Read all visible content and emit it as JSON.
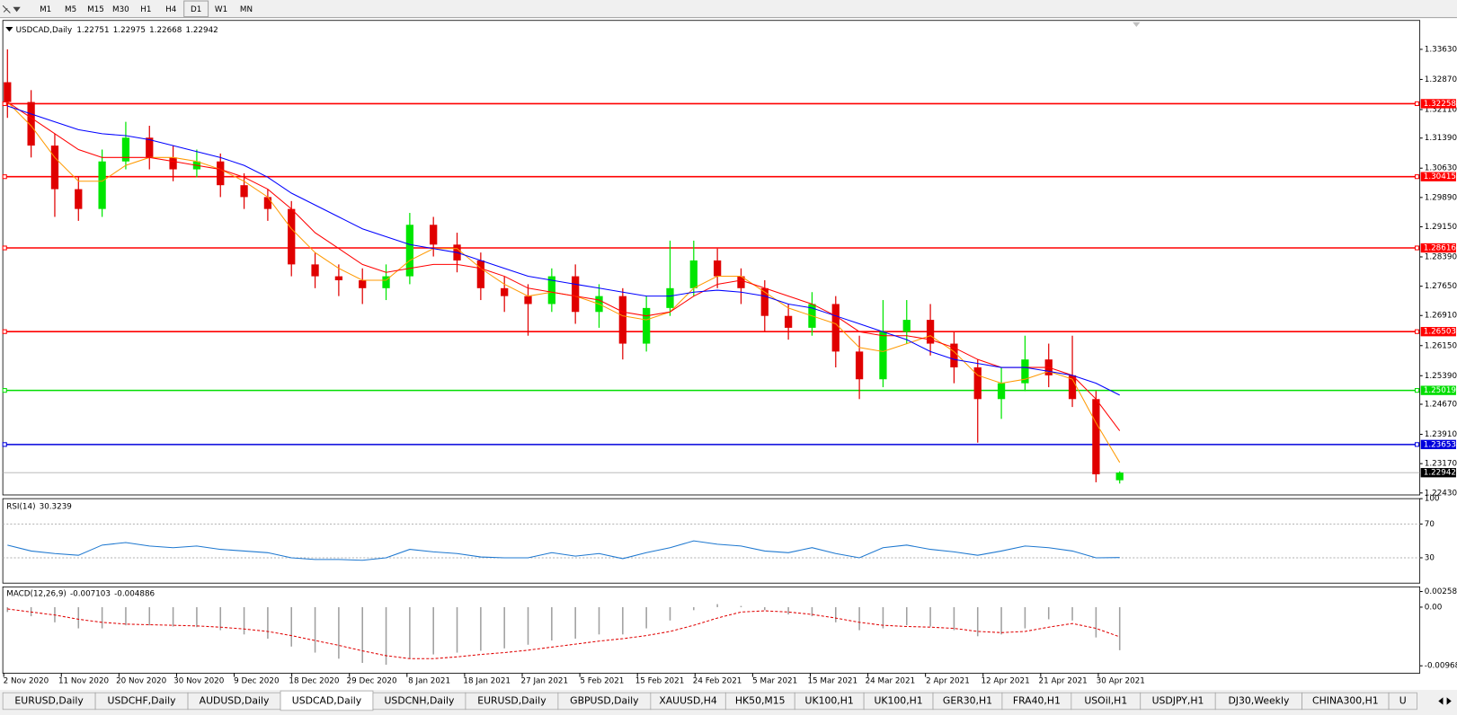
{
  "toolbar": {
    "timeframes": [
      "M1",
      "M5",
      "M15",
      "M30",
      "H1",
      "H4",
      "D1",
      "W1",
      "MN"
    ]
  },
  "chart_data": [
    {
      "type": "candlestick",
      "title": "USDCAD,Daily",
      "open": [
        1.328,
        1.323,
        1.312,
        1.301,
        1.296,
        1.308,
        1.314,
        1.309,
        1.306,
        1.308,
        1.302,
        1.299,
        1.296,
        1.282,
        1.279,
        1.278,
        1.276,
        1.279,
        1.292,
        1.287,
        1.283,
        1.276,
        1.274,
        1.272,
        1.279,
        1.27,
        1.274,
        1.262,
        1.271,
        1.276,
        1.283,
        1.279,
        1.276,
        1.269,
        1.266,
        1.272,
        1.26,
        1.253,
        1.265,
        1.268,
        1.262,
        1.256,
        1.248,
        1.252,
        1.258,
        1.254,
        1.248,
        1.22751
      ],
      "high": [
        1.3363,
        1.326,
        1.315,
        1.304,
        1.311,
        1.318,
        1.317,
        1.312,
        1.311,
        1.31,
        1.305,
        1.301,
        1.298,
        1.285,
        1.282,
        1.281,
        1.282,
        1.295,
        1.294,
        1.29,
        1.285,
        1.279,
        1.277,
        1.281,
        1.282,
        1.277,
        1.276,
        1.274,
        1.288,
        1.288,
        1.286,
        1.281,
        1.278,
        1.272,
        1.275,
        1.274,
        1.264,
        1.273,
        1.273,
        1.272,
        1.265,
        1.258,
        1.256,
        1.264,
        1.262,
        1.264,
        1.25,
        1.22975
      ],
      "low": [
        1.319,
        1.309,
        1.294,
        1.293,
        1.294,
        1.306,
        1.306,
        1.303,
        1.304,
        1.299,
        1.296,
        1.293,
        1.279,
        1.276,
        1.274,
        1.272,
        1.273,
        1.277,
        1.284,
        1.28,
        1.273,
        1.27,
        1.264,
        1.27,
        1.267,
        1.266,
        1.258,
        1.26,
        1.269,
        1.274,
        1.276,
        1.272,
        1.265,
        1.263,
        1.264,
        1.256,
        1.248,
        1.251,
        1.262,
        1.259,
        1.252,
        1.237,
        1.243,
        1.25,
        1.251,
        1.246,
        1.227,
        1.22668
      ],
      "close": [
        1.323,
        1.312,
        1.301,
        1.296,
        1.308,
        1.314,
        1.309,
        1.306,
        1.308,
        1.302,
        1.299,
        1.296,
        1.282,
        1.279,
        1.278,
        1.276,
        1.279,
        1.292,
        1.287,
        1.283,
        1.276,
        1.274,
        1.272,
        1.279,
        1.27,
        1.274,
        1.262,
        1.271,
        1.276,
        1.283,
        1.279,
        1.276,
        1.269,
        1.266,
        1.272,
        1.26,
        1.253,
        1.265,
        1.268,
        1.262,
        1.256,
        1.248,
        1.252,
        1.258,
        1.254,
        1.248,
        1.229,
        1.22942
      ],
      "bull_color": "#00e600",
      "bear_color": "#e00000",
      "moving_averages": [
        {
          "color": "#ff9900",
          "values": [
            1.323,
            1.317,
            1.309,
            1.303,
            1.303,
            1.307,
            1.309,
            1.309,
            1.308,
            1.306,
            1.303,
            1.299,
            1.291,
            1.285,
            1.281,
            1.278,
            1.278,
            1.283,
            1.286,
            1.286,
            1.281,
            1.277,
            1.274,
            1.275,
            1.274,
            1.272,
            1.269,
            1.268,
            1.27,
            1.276,
            1.279,
            1.279,
            1.275,
            1.271,
            1.269,
            1.267,
            1.261,
            1.26,
            1.262,
            1.264,
            1.26,
            1.254,
            1.252,
            1.253,
            1.255,
            1.253,
            1.242,
            1.232
          ]
        },
        {
          "color": "#ff0000",
          "values": [
            1.323,
            1.319,
            1.315,
            1.311,
            1.309,
            1.309,
            1.309,
            1.308,
            1.307,
            1.306,
            1.304,
            1.301,
            1.296,
            1.29,
            1.286,
            1.282,
            1.28,
            1.281,
            1.282,
            1.282,
            1.281,
            1.279,
            1.276,
            1.275,
            1.274,
            1.273,
            1.27,
            1.269,
            1.27,
            1.274,
            1.277,
            1.278,
            1.276,
            1.274,
            1.272,
            1.269,
            1.265,
            1.264,
            1.264,
            1.263,
            1.261,
            1.258,
            1.256,
            1.256,
            1.256,
            1.254,
            1.248,
            1.24
          ]
        },
        {
          "color": "#0000ff",
          "values": [
            1.322,
            1.32,
            1.318,
            1.316,
            1.315,
            1.3145,
            1.3135,
            1.312,
            1.3105,
            1.309,
            1.307,
            1.304,
            1.3,
            1.297,
            1.294,
            1.291,
            1.289,
            1.287,
            1.286,
            1.285,
            1.283,
            1.281,
            1.279,
            1.278,
            1.277,
            1.276,
            1.275,
            1.274,
            1.274,
            1.275,
            1.2755,
            1.275,
            1.274,
            1.272,
            1.271,
            1.269,
            1.267,
            1.265,
            1.263,
            1.26,
            1.258,
            1.257,
            1.256,
            1.256,
            1.255,
            1.254,
            1.252,
            1.249
          ]
        }
      ],
      "levels": [
        {
          "value": 1.32258,
          "color": "#ff0000"
        },
        {
          "value": 1.30415,
          "color": "#ff0000"
        },
        {
          "value": 1.28616,
          "color": "#ff0000"
        },
        {
          "value": 1.26503,
          "color": "#ff0000"
        },
        {
          "value": 1.25019,
          "color": "#00dd00"
        },
        {
          "value": 1.23653,
          "color": "#0000dd"
        }
      ],
      "ylim": [
        1.2238,
        1.3436
      ],
      "yticks": [
        {
          "value": 1.3363,
          "label": "1.33630"
        },
        {
          "value": 1.3287,
          "label": "1.32870"
        },
        {
          "value": 1.3211,
          "label": "1.32110"
        },
        {
          "value": 1.3139,
          "label": "1.31390"
        },
        {
          "value": 1.3063,
          "label": "1.30630"
        },
        {
          "value": 1.2989,
          "label": "1.29890"
        },
        {
          "value": 1.2915,
          "label": "1.29150"
        },
        {
          "value": 1.2839,
          "label": "1.28390"
        },
        {
          "value": 1.2765,
          "label": "1.27650"
        },
        {
          "value": 1.2691,
          "label": "1.26910"
        },
        {
          "value": 1.2615,
          "label": "1.26150"
        },
        {
          "value": 1.2539,
          "label": "1.25390"
        },
        {
          "value": 1.2467,
          "label": "1.24670"
        },
        {
          "value": 1.2391,
          "label": "1.23910"
        },
        {
          "value": 1.2317,
          "label": "1.23170"
        },
        {
          "value": 1.2243,
          "label": "1.22430"
        }
      ],
      "date_labels": [
        "2 Nov 2020",
        "11 Nov 2020",
        "20 Nov 2020",
        "30 Nov 2020",
        "9 Dec 2020",
        "18 Dec 2020",
        "29 Dec 2020",
        "8 Jan 2021",
        "18 Jan 2021",
        "27 Jan 2021",
        "5 Feb 2021",
        "15 Feb 2021",
        "24 Feb 2021",
        "5 Mar 2021",
        "15 Mar 2021",
        "24 Mar 2021",
        "2 Apr 2021",
        "12 Apr 2021",
        "21 Apr 2021",
        "30 Apr 2021"
      ]
    },
    {
      "type": "line",
      "title": "RSI(14)",
      "color": "#1e78d0",
      "values": [
        45,
        38,
        35,
        33,
        45,
        48,
        44,
        42,
        44,
        40,
        38,
        36,
        30,
        28,
        28,
        27,
        30,
        40,
        37,
        35,
        31,
        30,
        30,
        36,
        32,
        35,
        29,
        36,
        42,
        50,
        46,
        44,
        38,
        36,
        42,
        35,
        30,
        42,
        45,
        40,
        37,
        33,
        38,
        44,
        42,
        38,
        30,
        30.3239
      ],
      "ylim": [
        0,
        100
      ],
      "yticks": [
        100,
        70,
        30
      ],
      "levels": [
        70,
        30
      ]
    },
    {
      "type": "macd",
      "title": "MACD(12,26,9)",
      "hist_color": "#a0a0a0",
      "signal_color": "#e00000",
      "histogram": [
        -0.0008,
        -0.0015,
        -0.0025,
        -0.0035,
        -0.0035,
        -0.003,
        -0.003,
        -0.0032,
        -0.0033,
        -0.0038,
        -0.0045,
        -0.0052,
        -0.0065,
        -0.0075,
        -0.0085,
        -0.0092,
        -0.0095,
        -0.0085,
        -0.0078,
        -0.0075,
        -0.0072,
        -0.0068,
        -0.0062,
        -0.0055,
        -0.0052,
        -0.0045,
        -0.0045,
        -0.0035,
        -0.0022,
        -0.0005,
        0.0005,
        0.0002,
        -0.0005,
        -0.0012,
        -0.0015,
        -0.0025,
        -0.0038,
        -0.0035,
        -0.003,
        -0.0032,
        -0.0038,
        -0.0048,
        -0.0045,
        -0.0035,
        -0.002,
        -0.0022,
        -0.005,
        -0.007103
      ],
      "signal": [
        -0.0003,
        -0.0008,
        -0.0013,
        -0.002,
        -0.0025,
        -0.0028,
        -0.0029,
        -0.003,
        -0.0031,
        -0.0033,
        -0.0036,
        -0.004,
        -0.0047,
        -0.0055,
        -0.0063,
        -0.0072,
        -0.008,
        -0.0085,
        -0.0085,
        -0.0082,
        -0.0078,
        -0.0075,
        -0.0071,
        -0.0066,
        -0.0061,
        -0.0056,
        -0.0052,
        -0.0047,
        -0.004,
        -0.003,
        -0.0018,
        -0.0008,
        -0.0006,
        -0.0008,
        -0.0012,
        -0.0018,
        -0.0025,
        -0.003,
        -0.0032,
        -0.0033,
        -0.0035,
        -0.004,
        -0.0042,
        -0.004,
        -0.0033,
        -0.0027,
        -0.0035,
        -0.004886
      ],
      "ylim": [
        -0.0109,
        0.00335
      ],
      "yticks": [
        0.00258,
        {
          "value": 0,
          "label": "0.00"
        },
        -0.00968
      ]
    }
  ],
  "tabs": {
    "active": 3,
    "items": [
      "EURUSD,Daily",
      "USDCHF,Daily",
      "AUDUSD,Daily",
      "USDCAD,Daily",
      "USDCNH,Daily",
      "EURUSD,Daily",
      "GBPUSD,Daily",
      "XAUUSD,H4",
      "HK50,M15",
      "UK100,H1",
      "UK100,H1",
      "GER30,H1",
      "FRA40,H1",
      "USOil,H1",
      "USDJPY,H1",
      "DJ30,Weekly",
      "CHINA300,H1",
      "U"
    ]
  }
}
